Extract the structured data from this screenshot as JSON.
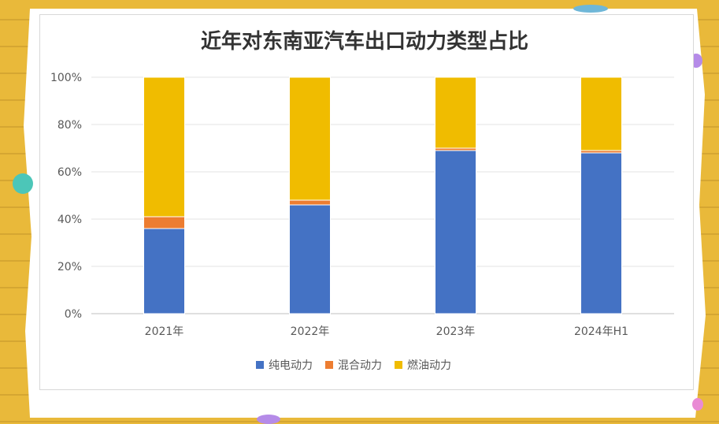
{
  "colors": {
    "background": "#e9b93a",
    "pure_electric": "#4472c4",
    "hybrid": "#ed7d31",
    "fuel": "#f0bc00"
  },
  "chart_data": {
    "type": "bar",
    "stacked": true,
    "title": "近年对东南亚汽车出口动力类型占比",
    "categories": [
      "2021年",
      "2022年",
      "2023年",
      "2024年H1"
    ],
    "series": [
      {
        "name": "纯电动力",
        "color": "#4472c4",
        "values": [
          36,
          46,
          69,
          68
        ]
      },
      {
        "name": "混合动力",
        "color": "#ed7d31",
        "values": [
          5,
          2,
          1,
          1
        ]
      },
      {
        "name": "燃油动力",
        "color": "#f0bc00",
        "values": [
          59,
          52,
          30,
          31
        ]
      }
    ],
    "ylim": [
      0,
      100
    ],
    "yticks": [
      "0%",
      "20%",
      "40%",
      "60%",
      "80%",
      "100%"
    ],
    "xlabel": "",
    "ylabel": "",
    "grid": true,
    "legend_position": "bottom"
  }
}
